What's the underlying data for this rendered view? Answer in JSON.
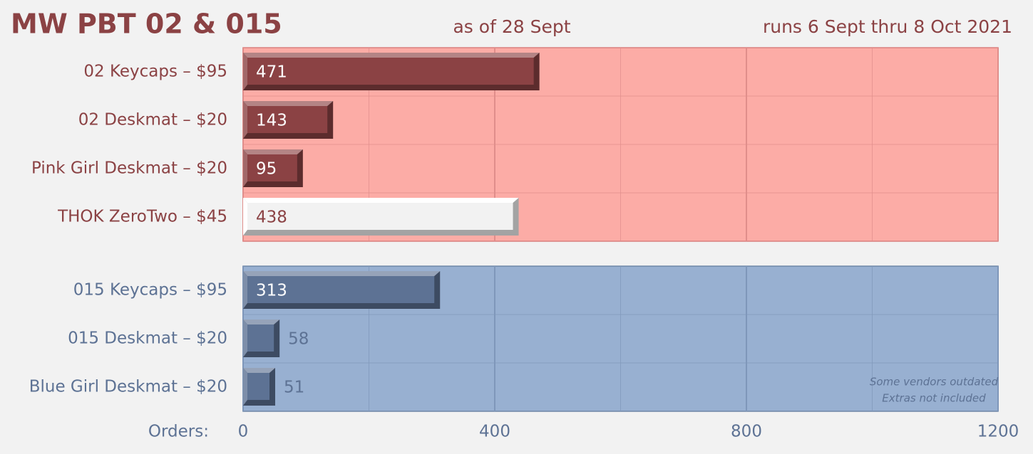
{
  "chart_data": {
    "type": "bar",
    "orientation": "horizontal",
    "title": "MW PBT 02 & 015",
    "subtitle": "as of 28 Sept",
    "date_range": "runs 6 Sept thru 8 Oct 2021",
    "xlabel": "Orders:",
    "xlim": [
      0,
      1200
    ],
    "xticks": [
      0,
      400,
      800,
      1200
    ],
    "xminor_grid": [
      200,
      600,
      1000
    ],
    "grid": true,
    "annotation": [
      "Some vendors outdated",
      "Extras not included"
    ],
    "panels": [
      {
        "background": "#fcaca6",
        "border": "#d9807f",
        "grid_color": "#e08e8b",
        "text_color": "#8b4244",
        "categories": [
          "02 Keycaps – $95",
          "02 Deskmat – $20",
          "Pink Girl Deskmat – $20",
          "THOK ZeroTwo – $45"
        ],
        "values": [
          471,
          143,
          95,
          438
        ],
        "colors": [
          "#8b4244",
          "#8b4244",
          "#8b4244",
          "#f2f2f2"
        ]
      },
      {
        "background": "#98b0d1",
        "border": "#6f87a8",
        "grid_color": "#7f97ba",
        "text_color": "#5d7294",
        "categories": [
          "015 Keycaps – $95",
          "015 Deskmat – $20",
          "Blue Girl Deskmat – $20"
        ],
        "values": [
          313,
          58,
          51
        ],
        "colors": [
          "#5d7294",
          "#5d7294",
          "#5d7294"
        ]
      }
    ]
  }
}
